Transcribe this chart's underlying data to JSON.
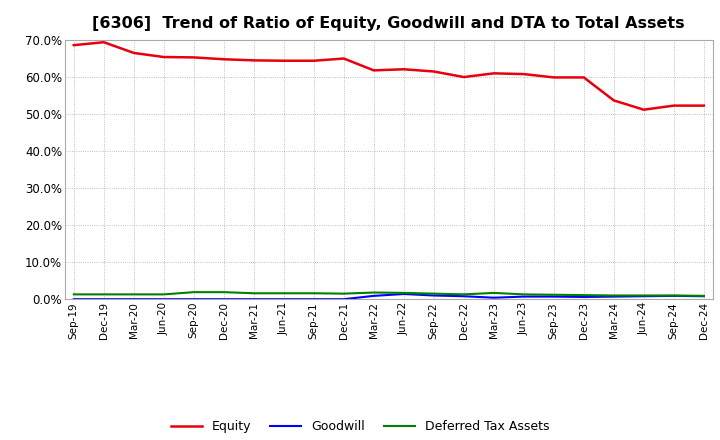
{
  "title": "[6306]  Trend of Ratio of Equity, Goodwill and DTA to Total Assets",
  "x_labels": [
    "Sep-19",
    "Dec-19",
    "Mar-20",
    "Jun-20",
    "Sep-20",
    "Dec-20",
    "Mar-21",
    "Jun-21",
    "Sep-21",
    "Dec-21",
    "Mar-22",
    "Jun-22",
    "Sep-22",
    "Dec-22",
    "Mar-23",
    "Jun-23",
    "Sep-23",
    "Dec-23",
    "Mar-24",
    "Jun-24",
    "Sep-24",
    "Dec-24"
  ],
  "equity": [
    0.685,
    0.693,
    0.664,
    0.653,
    0.652,
    0.647,
    0.644,
    0.643,
    0.643,
    0.649,
    0.617,
    0.62,
    0.614,
    0.599,
    0.609,
    0.607,
    0.598,
    0.598,
    0.536,
    0.511,
    0.522,
    0.522
  ],
  "goodwill": [
    0.0,
    0.0,
    0.0,
    0.0,
    0.0,
    0.0,
    0.0,
    0.0,
    0.0,
    0.0,
    0.009,
    0.014,
    0.01,
    0.008,
    0.004,
    0.007,
    0.007,
    0.006,
    0.007,
    0.008,
    0.009,
    0.008
  ],
  "dta": [
    0.013,
    0.013,
    0.013,
    0.013,
    0.019,
    0.019,
    0.016,
    0.016,
    0.016,
    0.015,
    0.018,
    0.017,
    0.015,
    0.013,
    0.017,
    0.013,
    0.012,
    0.011,
    0.01,
    0.01,
    0.01,
    0.009
  ],
  "equity_color": "#e8000d",
  "goodwill_color": "#0000ff",
  "dta_color": "#008000",
  "ylim": [
    0.0,
    0.7
  ],
  "yticks": [
    0.0,
    0.1,
    0.2,
    0.3,
    0.4,
    0.5,
    0.6,
    0.7
  ],
  "background_color": "#ffffff",
  "grid_color": "#aaaaaa",
  "title_fontsize": 11.5
}
